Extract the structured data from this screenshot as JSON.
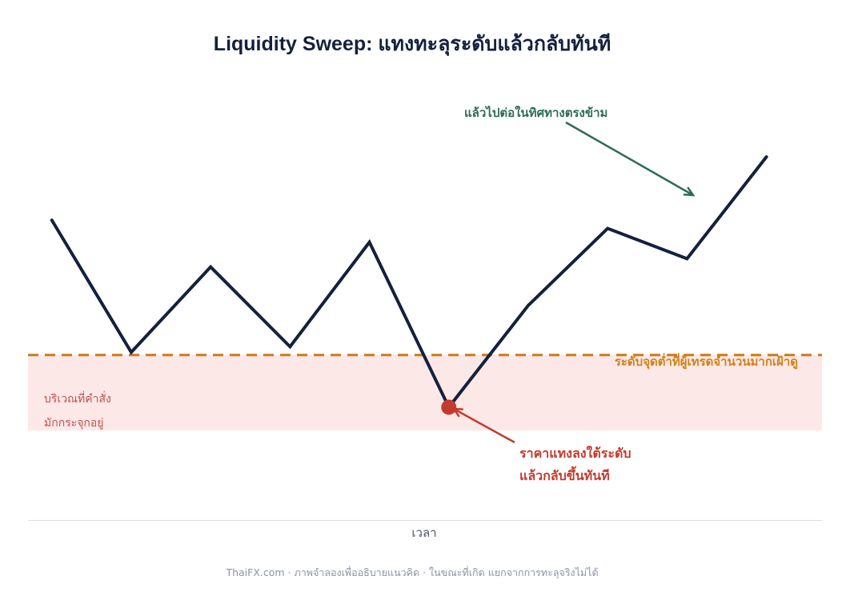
{
  "chart_data": {
    "type": "line",
    "title": "Liquidity Sweep: แทงทะลุระดับแล้วกลับทันที",
    "xlabel": "เวลา",
    "ylabel": "",
    "grid": false,
    "series": [
      {
        "values": [
          7.2,
          2.4,
          5.5,
          2.6,
          6.4,
          0.4,
          4.1,
          6.9,
          5.8,
          9.5
        ],
        "color": "#14213d"
      }
    ],
    "x": [
      0,
      1,
      2,
      3,
      4,
      5,
      6,
      7,
      8,
      9
    ],
    "ylim": [
      -3.7,
      12.5
    ],
    "xlim": [
      -0.3,
      9.7
    ],
    "support_level": 2.3,
    "zone": {
      "from": -0.45,
      "to": 2.3
    },
    "sweep_point": {
      "x": 5,
      "y": 0.4
    },
    "annotations": {
      "continuation": "แล้วไปต่อในทิศทางตรงข้าม",
      "support": "ระดับจุดต่ำที่ผู้เทรดจำนวนมากเฝ้าดู",
      "zone_line1": "บริเวณที่คำสั่ง",
      "zone_line2": "มักกระจุกอยู่",
      "sweep_line1": "ราคาแทงลงใต้ระดับ",
      "sweep_line2": "แล้วกลับขึ้นทันที"
    },
    "footer": "ThaiFX.com  ·  ภาพจำลองเพื่ออธิบายแนวคิด  ·  ในขณะที่เกิด แยกจากการทะลุจริงไม่ได้"
  },
  "colors": {
    "price": "#14213d",
    "support": "#cf7a12",
    "zone": "#fde8e8",
    "sweep": "#c23b2e",
    "continuation": "#2f6b55",
    "axis": "#d9dde3"
  }
}
